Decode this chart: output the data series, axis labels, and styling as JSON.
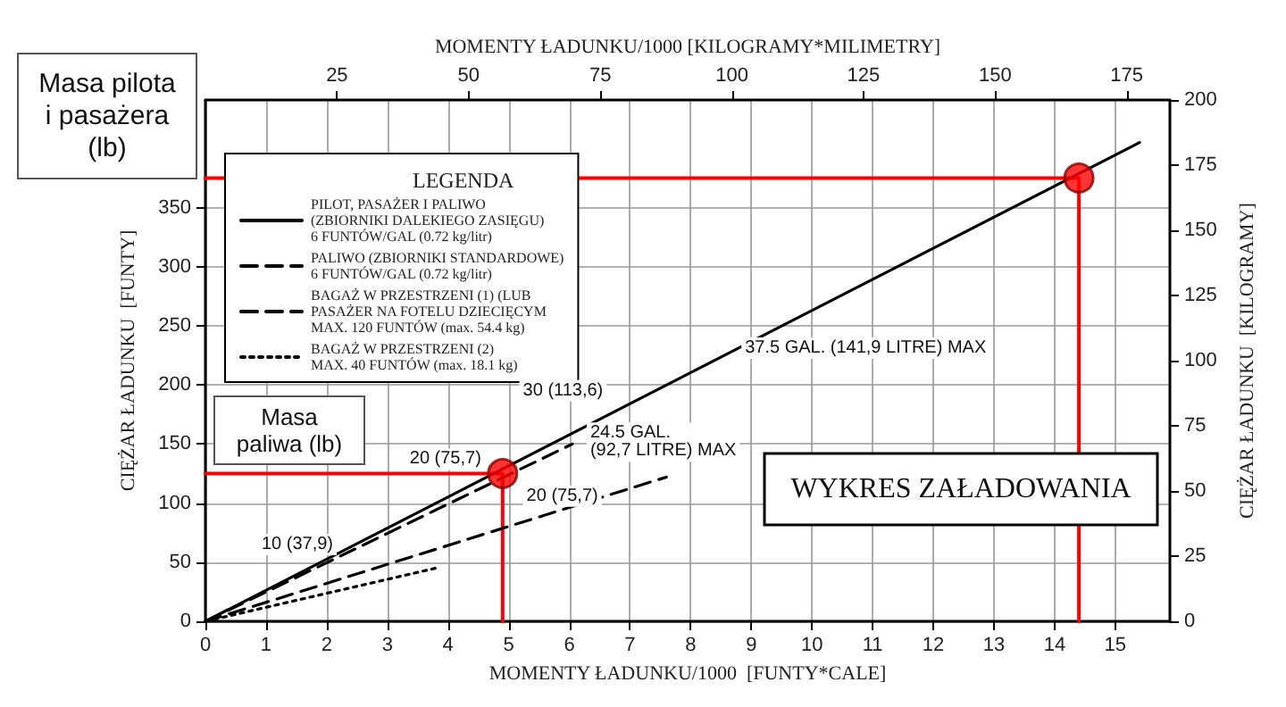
{
  "chart_data": {
    "type": "line",
    "xlabel": "MOMENTY ŁADUNKU/1000  [FUNTY*CALE]",
    "x2label": "MOMENTY ŁADUNKU/1000 [KILOGRAMY*MILIMETRY]",
    "ylabel": "CIĘŻAR ŁADUNKU  [FUNTY]",
    "y2label": "CIĘŻAR ŁADUNKU  [KILOGRAMY]",
    "legend_title": "LEGENDA",
    "xlim": [
      0,
      15.9
    ],
    "xticks": [
      0,
      1,
      2,
      3,
      4,
      5,
      6,
      7,
      8,
      9,
      10,
      11,
      12,
      13,
      14,
      15
    ],
    "x2lim": [
      0,
      183.2
    ],
    "x2ticks": [
      25,
      50,
      75,
      100,
      125,
      150,
      175
    ],
    "ylim": [
      0,
      441
    ],
    "yticks": [
      0,
      50,
      100,
      150,
      200,
      250,
      300,
      350
    ],
    "y2lim": [
      0,
      200
    ],
    "y2ticks": [
      0,
      25,
      50,
      75,
      100,
      125,
      150,
      175,
      200
    ],
    "grid": true,
    "legend": "top left",
    "series": [
      {
        "name": "PILOT, PASAŻER I PALIWO\n(ZBIORNIKI DALEKIEGO ZASIĘGU)\n6 FUNTÓW/GAL (0.72 kg/litr)",
        "color": "#000000",
        "line_style": "solid",
        "x": [
          0,
          15.4
        ],
        "values": [
          0,
          405
        ]
      },
      {
        "name": "PALIWO (ZBIORNIKI STANDARDOWE)\n6 FUNTÓW/GAL (0.72 kg/litr)",
        "color": "#000000",
        "line_style": "dashed",
        "x": [
          0,
          6.05
        ],
        "values": [
          0,
          150
        ]
      },
      {
        "name": "BAGAŻ W PRZESTRZENI (1) (LUB\nPASAŻER NA FOTELU DZIECIĘCYM\nMAX. 120 FUNTÓW (max. 54.4 kg)",
        "color": "#000000",
        "line_style": "dashed",
        "x": [
          0,
          7.6
        ],
        "values": [
          0,
          122
        ]
      },
      {
        "name": "BAGAŻ W PRZESTRZENI (2)\nMAX. 40 FUNTÓW (max. 18.1 kg)",
        "color": "#000000",
        "line_style": "dotted",
        "x": [
          0,
          3.8
        ],
        "values": [
          0,
          45
        ]
      },
      {
        "color": "#ff0000",
        "line_style": "solid",
        "x": [
          0,
          14.4,
          14.4
        ],
        "values": [
          375,
          375,
          0
        ]
      },
      {
        "color": "#ff0000",
        "line_style": "solid",
        "x": [
          0,
          4.9,
          4.9
        ],
        "values": [
          125,
          125,
          0
        ]
      },
      {
        "type": "scatter",
        "color": "#ff0000",
        "marker": "circle",
        "x": [
          14.4,
          4.9
        ],
        "values": [
          375,
          125
        ]
      }
    ],
    "annotations": [
      {
        "text": "10 (37,9)",
        "x": 2.4,
        "y": 62
      },
      {
        "text": "20 (75,7)",
        "x": 4.9,
        "y": 125
      },
      {
        "text": "20 (75,7)",
        "x": 5.0,
        "y": 118
      },
      {
        "text": "30 (113,6)",
        "x": 6.85,
        "y": 180
      },
      {
        "text": "24.5 GAL.\n(92,7 LITRE) MAX",
        "x": 6.05,
        "y": 150
      },
      {
        "text": "37.5 GAL. (141,9 LITRE) MAX",
        "x": 8.6,
        "y": 225
      },
      "WYKRES ZAŁADOWANIA",
      "Masa pilota\ni pasażera\n(lb)",
      "Masa\npaliwa (lb)"
    ]
  }
}
